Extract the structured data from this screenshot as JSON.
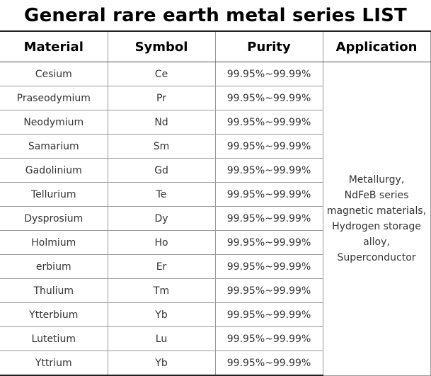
{
  "title": "General rare earth metal series LIST",
  "headers": {
    "material": "Material",
    "symbol": "Symbol",
    "purity": "Purity",
    "application": "Application"
  },
  "rows": [
    {
      "material": "Cesium",
      "symbol": "Ce",
      "purity": "99.95%~99.99%"
    },
    {
      "material": "Praseodymium",
      "symbol": "Pr",
      "purity": "99.95%~99.99%"
    },
    {
      "material": "Neodymium",
      "symbol": "Nd",
      "purity": "99.95%~99.99%"
    },
    {
      "material": "Samarium",
      "symbol": "Sm",
      "purity": "99.95%~99.99%"
    },
    {
      "material": "Gadolinium",
      "symbol": "Gd",
      "purity": "99.95%~99.99%"
    },
    {
      "material": "Tellurium",
      "symbol": "Te",
      "purity": "99.95%~99.99%"
    },
    {
      "material": "Dysprosium",
      "symbol": "Dy",
      "purity": "99.95%~99.99%"
    },
    {
      "material": "Holmium",
      "symbol": "Ho",
      "purity": "99.95%~99.99%"
    },
    {
      "material": "erbium",
      "symbol": "Er",
      "purity": "99.95%~99.99%"
    },
    {
      "material": "Thulium",
      "symbol": "Tm",
      "purity": "99.95%~99.99%"
    },
    {
      "material": "Ytterbium",
      "symbol": "Yb",
      "purity": "99.95%~99.99%"
    },
    {
      "material": "Lutetium",
      "symbol": "Lu",
      "purity": "99.95%~99.99%"
    },
    {
      "material": "Yttrium",
      "symbol": "Yb",
      "purity": "99.95%~99.99%"
    }
  ],
  "application": {
    "lines": [
      "Metallurgy,",
      "NdFeB series",
      "magnetic materials,",
      "Hydrogen storage",
      "alloy,",
      "Superconductor"
    ]
  }
}
